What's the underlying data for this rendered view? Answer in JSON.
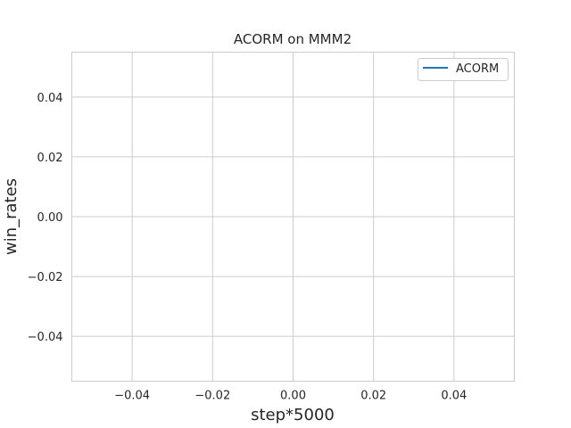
{
  "chart_data": {
    "type": "line",
    "title": "ACORM on MMM2",
    "xlabel": "step*5000",
    "ylabel": "win_rates",
    "xlim": [
      -0.055,
      0.055
    ],
    "ylim": [
      -0.055,
      0.055
    ],
    "xticks": [
      -0.04,
      -0.02,
      0.0,
      0.02,
      0.04
    ],
    "xtick_labels": [
      "−0.04",
      "−0.02",
      "0.00",
      "0.02",
      "0.04"
    ],
    "yticks": [
      0.04,
      0.02,
      0.0,
      -0.02,
      -0.04
    ],
    "ytick_labels": [
      "0.04",
      "0.02",
      "0.00",
      "−0.02",
      "−0.04"
    ],
    "grid": true,
    "legend_position": "top-right",
    "series": [
      {
        "name": "ACORM",
        "color": "#1f77b4",
        "x": [],
        "y": []
      }
    ]
  }
}
